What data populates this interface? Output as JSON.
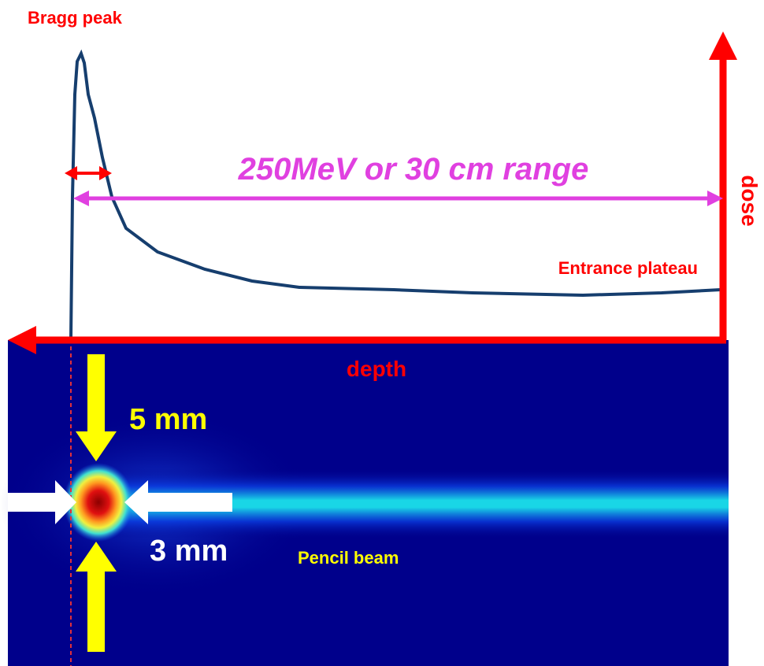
{
  "labels": {
    "bragg_peak": "Bragg peak",
    "range": "250MeV or 30 cm range",
    "dose": "dose",
    "entrance_plateau": "Entrance plateau",
    "depth": "depth",
    "vertical_size": "5 mm",
    "horizontal_size": "3 mm",
    "pencil_beam": "Pencil beam"
  }
}
